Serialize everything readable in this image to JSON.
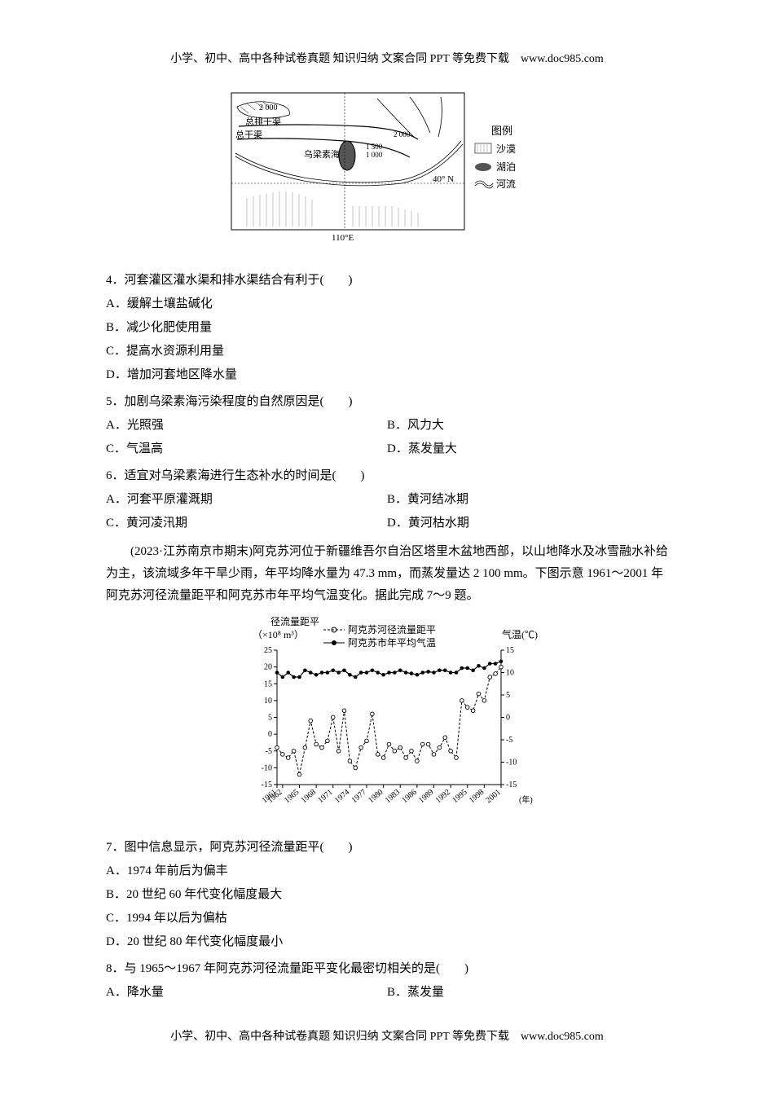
{
  "header": "小学、初中、高中各种试卷真题 知识归纳 文案合同 PPT 等免费下载　www.doc985.com",
  "footer": "小学、初中、高中各种试卷真题 知识归纳 文案合同 PPT 等免费下载　www.doc985.com",
  "map": {
    "labels": {
      "contour_top": "2 000",
      "contour_right_2000": "2 000",
      "contour_right_1500": "1 500",
      "contour_right_1000": "1 000",
      "drain_main": "总排干渠",
      "canal_main": "总干渠",
      "lake": "乌梁素海",
      "lat": "40° N",
      "lon": "110°E",
      "legend_title": "图例",
      "legend_desert": "沙漠",
      "legend_lake": "湖泊",
      "legend_river": "河流"
    },
    "colors": {
      "border": "#000000",
      "hatch": "#7a7a7a",
      "water": "#333333",
      "text": "#000000",
      "bg": "#ffffff",
      "river": "#000000"
    }
  },
  "q4": {
    "stem": "4．河套灌区灌水渠和排水渠结合有利于(　　)",
    "A": "A．缓解土壤盐碱化",
    "B": "B．减少化肥使用量",
    "C": "C．提高水资源利用量",
    "D": "D．增加河套地区降水量"
  },
  "q5": {
    "stem": "5．加剧乌梁素海污染程度的自然原因是(　　)",
    "A": "A．光照强",
    "B": "B．风力大",
    "C": "C．气温高",
    "D": "D．蒸发量大"
  },
  "q6": {
    "stem": "6．适宜对乌梁素海进行生态补水的时间是(　　)",
    "A": "A．河套平原灌溉期",
    "B": "B．黄河结冰期",
    "C": "C．黄河凌汛期",
    "D": "D．黄河枯水期"
  },
  "passage": "(2023·江苏南京市期末)阿克苏河位于新疆维吾尔自治区塔里木盆地西部，以山地降水及冰雪融水补给为主，该流域多年干旱少雨，年平均降水量为 47.3 mm，而蒸发量达 2 100 mm。下图示意 1961～2001 年阿克苏河径流量距平和阿克苏市年平均气温变化。据此完成 7～9 题。",
  "chart": {
    "type": "dual-axis-line",
    "title_left": "径流量距平",
    "unit_left": "（×10⁸ m³）",
    "title_right": "气温(℃)",
    "series1_name": "阿克苏河径流量距平",
    "series2_name": "阿克苏市年平均气温",
    "series1_style": "open-circle-dashed",
    "series2_style": "filled-circle-solid",
    "x_labels": [
      "1961",
      "1962",
      "1965",
      "1968",
      "1971",
      "1974",
      "1977",
      "1980",
      "1983",
      "1986",
      "1989",
      "1992",
      "1995",
      "1998",
      "2001"
    ],
    "x_suffix": "(年)",
    "y_left_ticks": [
      -15,
      -10,
      -5,
      0,
      5,
      10,
      15,
      20,
      25
    ],
    "y_right_ticks": [
      -15,
      -10,
      -5,
      0,
      5,
      10,
      15
    ],
    "years": [
      1961,
      1962,
      1963,
      1964,
      1965,
      1966,
      1967,
      1968,
      1969,
      1970,
      1971,
      1972,
      1973,
      1974,
      1975,
      1976,
      1977,
      1978,
      1979,
      1980,
      1981,
      1982,
      1983,
      1984,
      1985,
      1986,
      1987,
      1988,
      1989,
      1990,
      1991,
      1992,
      1993,
      1994,
      1995,
      1996,
      1997,
      1998,
      1999,
      2000,
      2001
    ],
    "runoff": [
      -4,
      -6,
      -7,
      -5,
      -12,
      -4,
      4,
      -3,
      -4,
      -2,
      5,
      -5,
      7,
      -8,
      -10,
      -4,
      -2,
      6,
      -6,
      -7,
      -3,
      -5,
      -4,
      -7,
      -5,
      -8,
      -3,
      -3,
      -6,
      -4,
      -1,
      -5,
      -7,
      10,
      8,
      7,
      12,
      10,
      17,
      18,
      20
    ],
    "temp": [
      10,
      9,
      10,
      9,
      9,
      10.5,
      10,
      9.5,
      10,
      10,
      10.5,
      10,
      10.5,
      9.5,
      9,
      10,
      10,
      10.5,
      10,
      9.5,
      10,
      10,
      10.5,
      10,
      9.8,
      9.5,
      10,
      10.2,
      10,
      10.5,
      10.5,
      10,
      10,
      11,
      11,
      10.5,
      11.5,
      11,
      12,
      12,
      12.5
    ],
    "colors": {
      "axis": "#000000",
      "series1": "#000000",
      "series2": "#000000",
      "text": "#000000"
    },
    "font_size_axis": 10,
    "font_size_legend": 12
  },
  "q7": {
    "stem": "7．图中信息显示，阿克苏河径流量距平(　　)",
    "A": "A．1974 年前后为偏丰",
    "B": "B．20 世纪 60 年代变化幅度最大",
    "C": "C．1994 年以后为偏枯",
    "D": "D．20 世纪 80 年代变化幅度最小"
  },
  "q8": {
    "stem": "8．与 1965～1967 年阿克苏河径流量距平变化最密切相关的是(　　)",
    "A": "A．降水量",
    "B": "B．蒸发量"
  }
}
